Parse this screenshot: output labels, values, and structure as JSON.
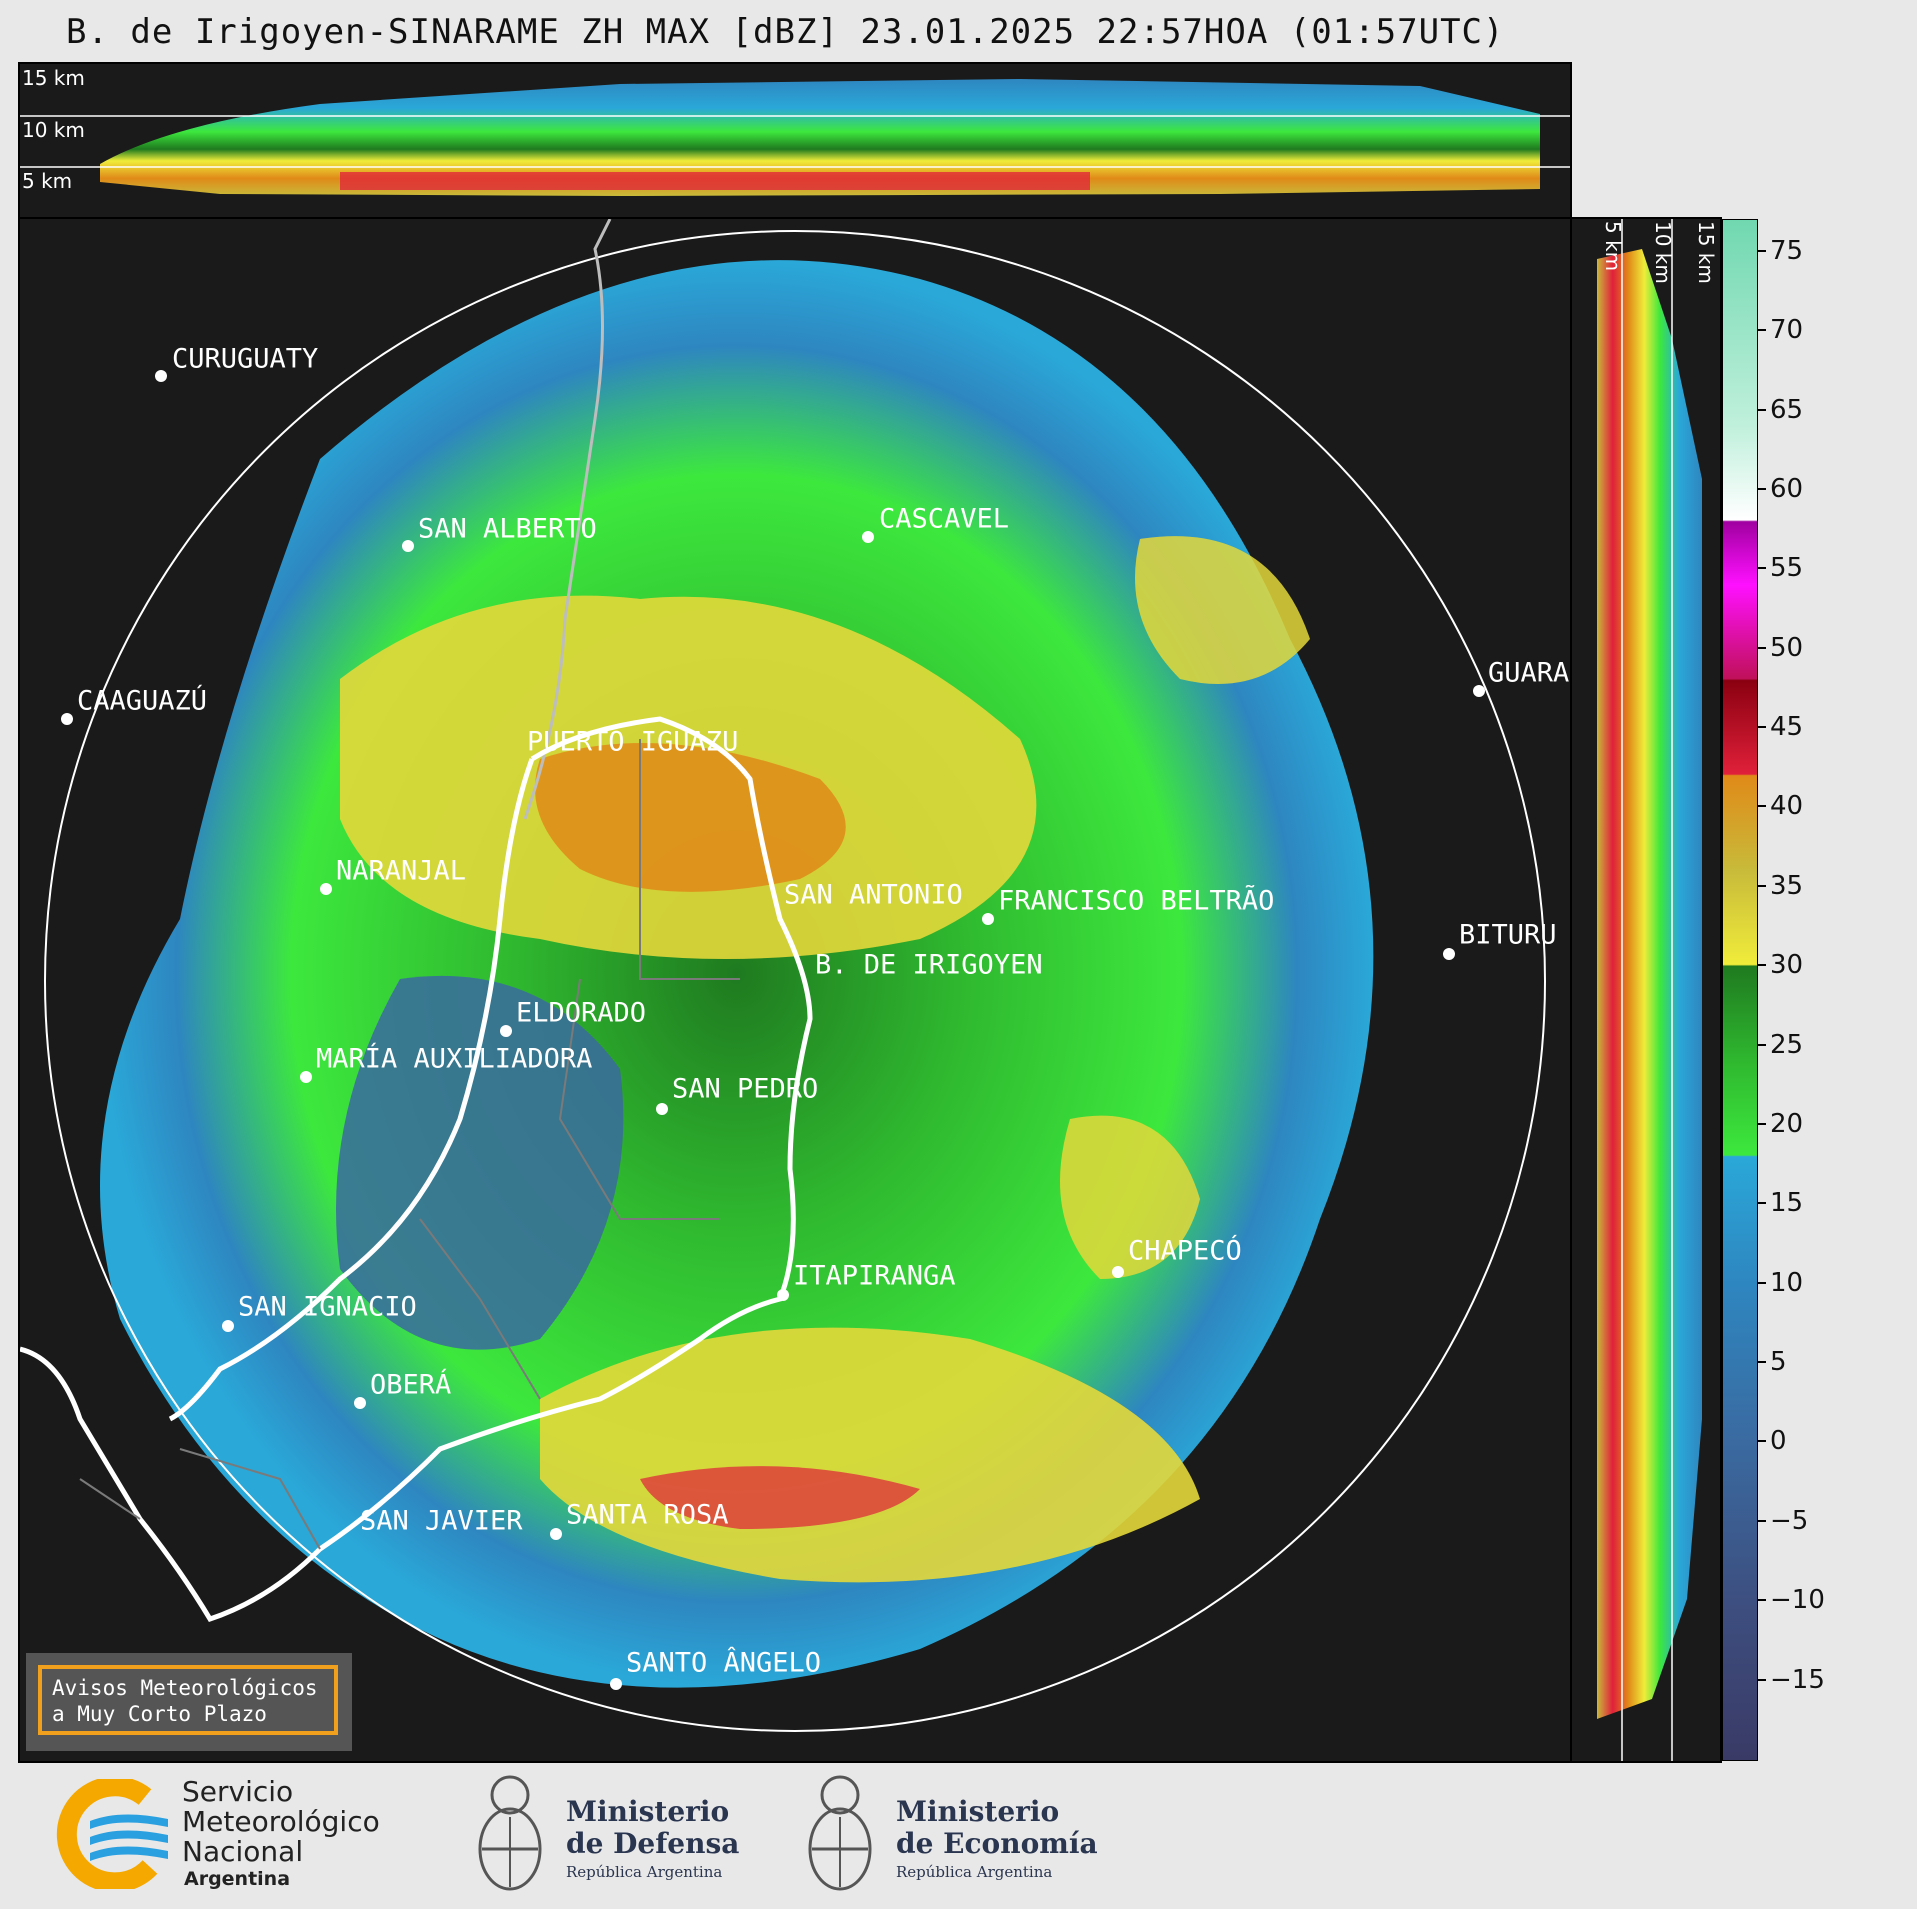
{
  "title": "B. de Irigoyen-SINARAME ZH MAX [dBZ] 23.01.2025 22:57HOA (01:57UTC)",
  "height_labels_top": [
    "15 km",
    "10 km",
    "5 km"
  ],
  "height_labels_side": [
    "5 km",
    "10 km",
    "15 km"
  ],
  "cities": [
    {
      "name": "CURUGUATY"
    },
    {
      "name": "SAN ALBERTO"
    },
    {
      "name": "CASCAVEL"
    },
    {
      "name": "CAAGUAZÚ"
    },
    {
      "name": "GUARA"
    },
    {
      "name": "PUERTO IGUAZU"
    },
    {
      "name": "NARANJAL"
    },
    {
      "name": "SAN ANTONIO"
    },
    {
      "name": "FRANCISCO BELTRÃO"
    },
    {
      "name": "BITURU"
    },
    {
      "name": "B. DE IRIGOYEN"
    },
    {
      "name": "ELDORADO"
    },
    {
      "name": "MARÍA AUXILIADORA"
    },
    {
      "name": "SAN PEDRO"
    },
    {
      "name": "CHAPECÓ"
    },
    {
      "name": "ITAPIRANGA"
    },
    {
      "name": "SAN IGNACIO"
    },
    {
      "name": "OBERÁ"
    },
    {
      "name": "SAN JAVIER"
    },
    {
      "name": "SANTA ROSA"
    },
    {
      "name": "SANTO ÂNGELO"
    }
  ],
  "colorbar": {
    "min": -20,
    "max": 77,
    "ticks": [
      "75",
      "70",
      "65",
      "60",
      "55",
      "50",
      "45",
      "40",
      "35",
      "30",
      "25",
      "20",
      "15",
      "10",
      "5",
      "0",
      "−5",
      "−10",
      "−15"
    ],
    "stops": [
      {
        "v": -20,
        "c": "#3a3a66"
      },
      {
        "v": -10,
        "c": "#3d4f80"
      },
      {
        "v": 0,
        "c": "#3a6aa0"
      },
      {
        "v": 10,
        "c": "#2e86c0"
      },
      {
        "v": 18,
        "c": "#2aa8d8"
      },
      {
        "v": 18.1,
        "c": "#3de83d"
      },
      {
        "v": 24,
        "c": "#2fb82f"
      },
      {
        "v": 30,
        "c": "#1f7a1f"
      },
      {
        "v": 30.1,
        "c": "#f0ec3a"
      },
      {
        "v": 36,
        "c": "#c8bb3a"
      },
      {
        "v": 42,
        "c": "#e08a18"
      },
      {
        "v": 42.1,
        "c": "#e0203a"
      },
      {
        "v": 48,
        "c": "#8a0010"
      },
      {
        "v": 48.1,
        "c": "#c0105a"
      },
      {
        "v": 54,
        "c": "#ff10ff"
      },
      {
        "v": 58,
        "c": "#a000a0"
      },
      {
        "v": 58.1,
        "c": "#ffffff"
      },
      {
        "v": 64,
        "c": "#c0f0dc"
      },
      {
        "v": 77,
        "c": "#70d8b0"
      }
    ]
  },
  "legend_box": [
    "Avisos Meteorológicos",
    "a Muy Corto Plazo"
  ],
  "footer": {
    "smn": [
      "Servicio",
      "Meteorológico",
      "Nacional",
      "Argentina"
    ],
    "defensa": [
      "Ministerio",
      "de Defensa",
      "República Argentina"
    ],
    "economia": [
      "Ministerio",
      "de Economía",
      "República Argentina"
    ]
  },
  "colors": {
    "frame": "#1a1a1a",
    "accent": "#f0a01c",
    "smn_blue": "#2aa0e0",
    "smn_orange": "#f5a800"
  }
}
